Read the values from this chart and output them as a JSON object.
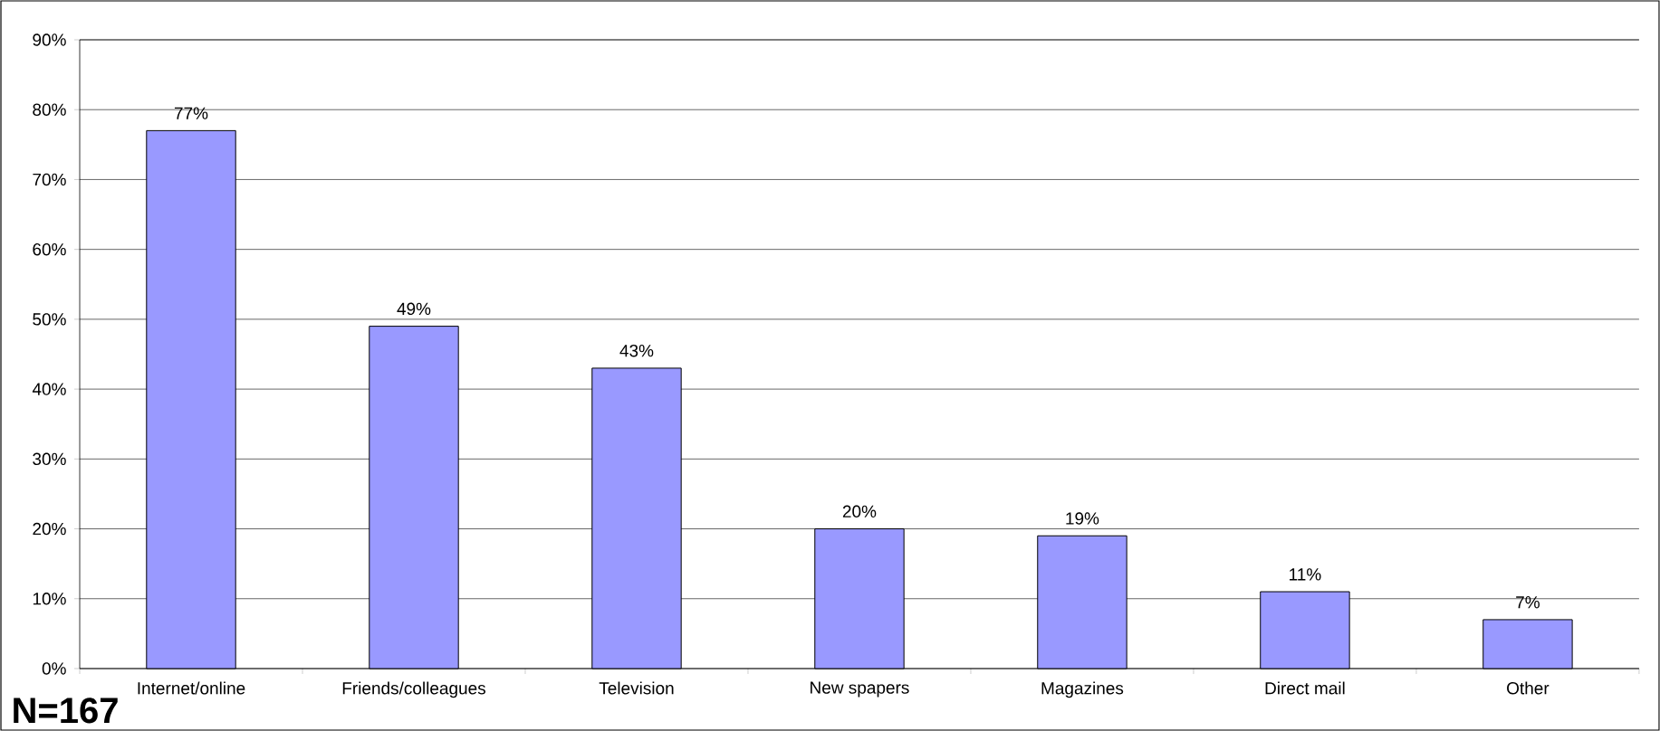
{
  "chart_data": {
    "type": "bar",
    "categories": [
      "Internet/online",
      "Friends/colleagues",
      "Television",
      "New spapers",
      "Magazines",
      "Direct mail",
      "Other"
    ],
    "values": [
      77,
      49,
      43,
      20,
      19,
      11,
      7
    ],
    "value_labels": [
      "77%",
      "49%",
      "43%",
      "20%",
      "19%",
      "11%",
      "7%"
    ],
    "color": "#9999ff",
    "ylim": [
      0,
      90
    ],
    "yticks": [
      {
        "value": 0,
        "label": "0%"
      },
      {
        "value": 10,
        "label": "10%"
      },
      {
        "value": 20,
        "label": "20%"
      },
      {
        "value": 30,
        "label": "30%"
      },
      {
        "value": 40,
        "label": "40%"
      },
      {
        "value": 50,
        "label": "50%"
      },
      {
        "value": 60,
        "label": "60%"
      },
      {
        "value": 70,
        "label": "70%"
      },
      {
        "value": 80,
        "label": "80%"
      },
      {
        "value": 90,
        "label": "90%"
      }
    ],
    "grid": "y",
    "legend": false,
    "annotations": [
      "N=167"
    ]
  }
}
